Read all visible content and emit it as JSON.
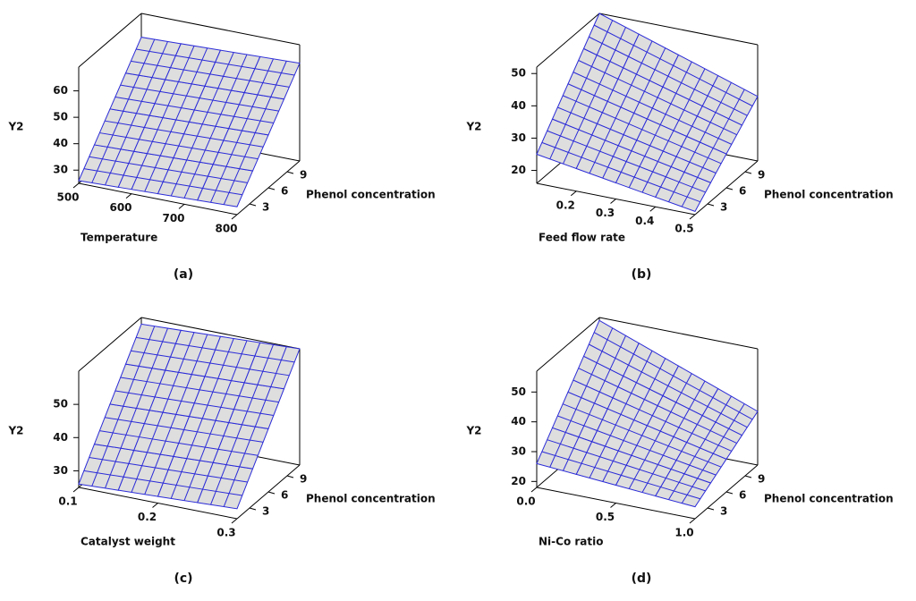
{
  "chart_data": [
    {
      "type": "surface",
      "panel_label": "(a)",
      "x_label": "Temperature",
      "y_label": "Phenol concentration",
      "z_label": "Y2",
      "color": "#2b2bd8",
      "x": [
        500,
        575,
        650,
        725,
        800
      ],
      "y": [
        1,
        3.5,
        6,
        8.5,
        11
      ],
      "z": [
        [
          26,
          26.5,
          27,
          27.5,
          28
        ],
        [
          34.5,
          35,
          35.5,
          36,
          36.5
        ],
        [
          43,
          43.5,
          44,
          44.5,
          45
        ],
        [
          51.5,
          52,
          52.5,
          53,
          53.5
        ],
        [
          60,
          60.5,
          61,
          61.5,
          62
        ]
      ],
      "xlim": [
        500,
        800
      ],
      "ylim": [
        1,
        11
      ],
      "zlim": [
        25,
        69
      ],
      "xticks": [
        500,
        600,
        700,
        800
      ],
      "yticks": [
        3,
        6,
        9
      ],
      "zticks": [
        30,
        40,
        50,
        60
      ]
    },
    {
      "type": "surface",
      "panel_label": "(b)",
      "x_label": "Feed flow rate",
      "y_label": "Phenol concentration",
      "z_label": "Y2",
      "color": "#2b2bd8",
      "x": [
        0.1,
        0.2,
        0.3,
        0.4,
        0.5
      ],
      "y": [
        1,
        3.5,
        6,
        8.5,
        11
      ],
      "z": [
        [
          25,
          23,
          21,
          19,
          17
        ],
        [
          31.75,
          29.25,
          26.75,
          24.25,
          21.75
        ],
        [
          38.5,
          35.5,
          32.5,
          29.5,
          26.5
        ],
        [
          45.25,
          41.75,
          38.25,
          34.75,
          31.25
        ],
        [
          52,
          48,
          44,
          40,
          36
        ]
      ],
      "xlim": [
        0.1,
        0.5
      ],
      "ylim": [
        1,
        11
      ],
      "zlim": [
        16,
        52
      ],
      "xticks": [
        0.2,
        0.3,
        0.4,
        0.5
      ],
      "yticks": [
        3,
        6,
        9
      ],
      "zticks": [
        20,
        30,
        40,
        50
      ]
    },
    {
      "type": "surface",
      "panel_label": "(c)",
      "x_label": "Catalyst weight",
      "y_label": "Phenol concentration",
      "z_label": "Y2",
      "color": "#2b2bd8",
      "x": [
        0.1,
        0.15,
        0.2,
        0.25,
        0.3
      ],
      "y": [
        1,
        3.5,
        6,
        8.5,
        11
      ],
      "z": [
        [
          26,
          26.5,
          27,
          27.5,
          28
        ],
        [
          34,
          34.5,
          35,
          35.5,
          36
        ],
        [
          42,
          42.5,
          43,
          43.5,
          44
        ],
        [
          50,
          50.5,
          51,
          51.5,
          52
        ],
        [
          58,
          58.5,
          59,
          59.5,
          60
        ]
      ],
      "xlim": [
        0.1,
        0.3
      ],
      "ylim": [
        1,
        11
      ],
      "zlim": [
        25,
        60
      ],
      "xticks": [
        0.1,
        0.2,
        0.3
      ],
      "yticks": [
        3,
        6,
        9
      ],
      "zticks": [
        30,
        40,
        50
      ]
    },
    {
      "type": "surface",
      "panel_label": "(d)",
      "x_label": "Ni-Co ratio",
      "y_label": "Phenol concentration",
      "z_label": "Y2",
      "color": "#2b2bd8",
      "x": [
        0,
        0.25,
        0.5,
        0.75,
        1
      ],
      "y": [
        1,
        3.5,
        6,
        8.5,
        11
      ],
      "z": [
        [
          26,
          25,
          24,
          23,
          22
        ],
        [
          33.5,
          31.5,
          29.5,
          27.5,
          25.5
        ],
        [
          41,
          38,
          35,
          32,
          29
        ],
        [
          48.5,
          44.5,
          40.5,
          36.5,
          32.5
        ],
        [
          56,
          51,
          46,
          41,
          36
        ]
      ],
      "xlim": [
        0,
        1
      ],
      "ylim": [
        1,
        11
      ],
      "zlim": [
        18,
        57
      ],
      "xticks": [
        {
          "value": 0,
          "label": "0.0"
        },
        0.5,
        {
          "value": 1,
          "label": "1.0"
        }
      ],
      "yticks": [
        3,
        6,
        9
      ],
      "zticks": [
        20,
        30,
        40,
        50
      ]
    }
  ]
}
